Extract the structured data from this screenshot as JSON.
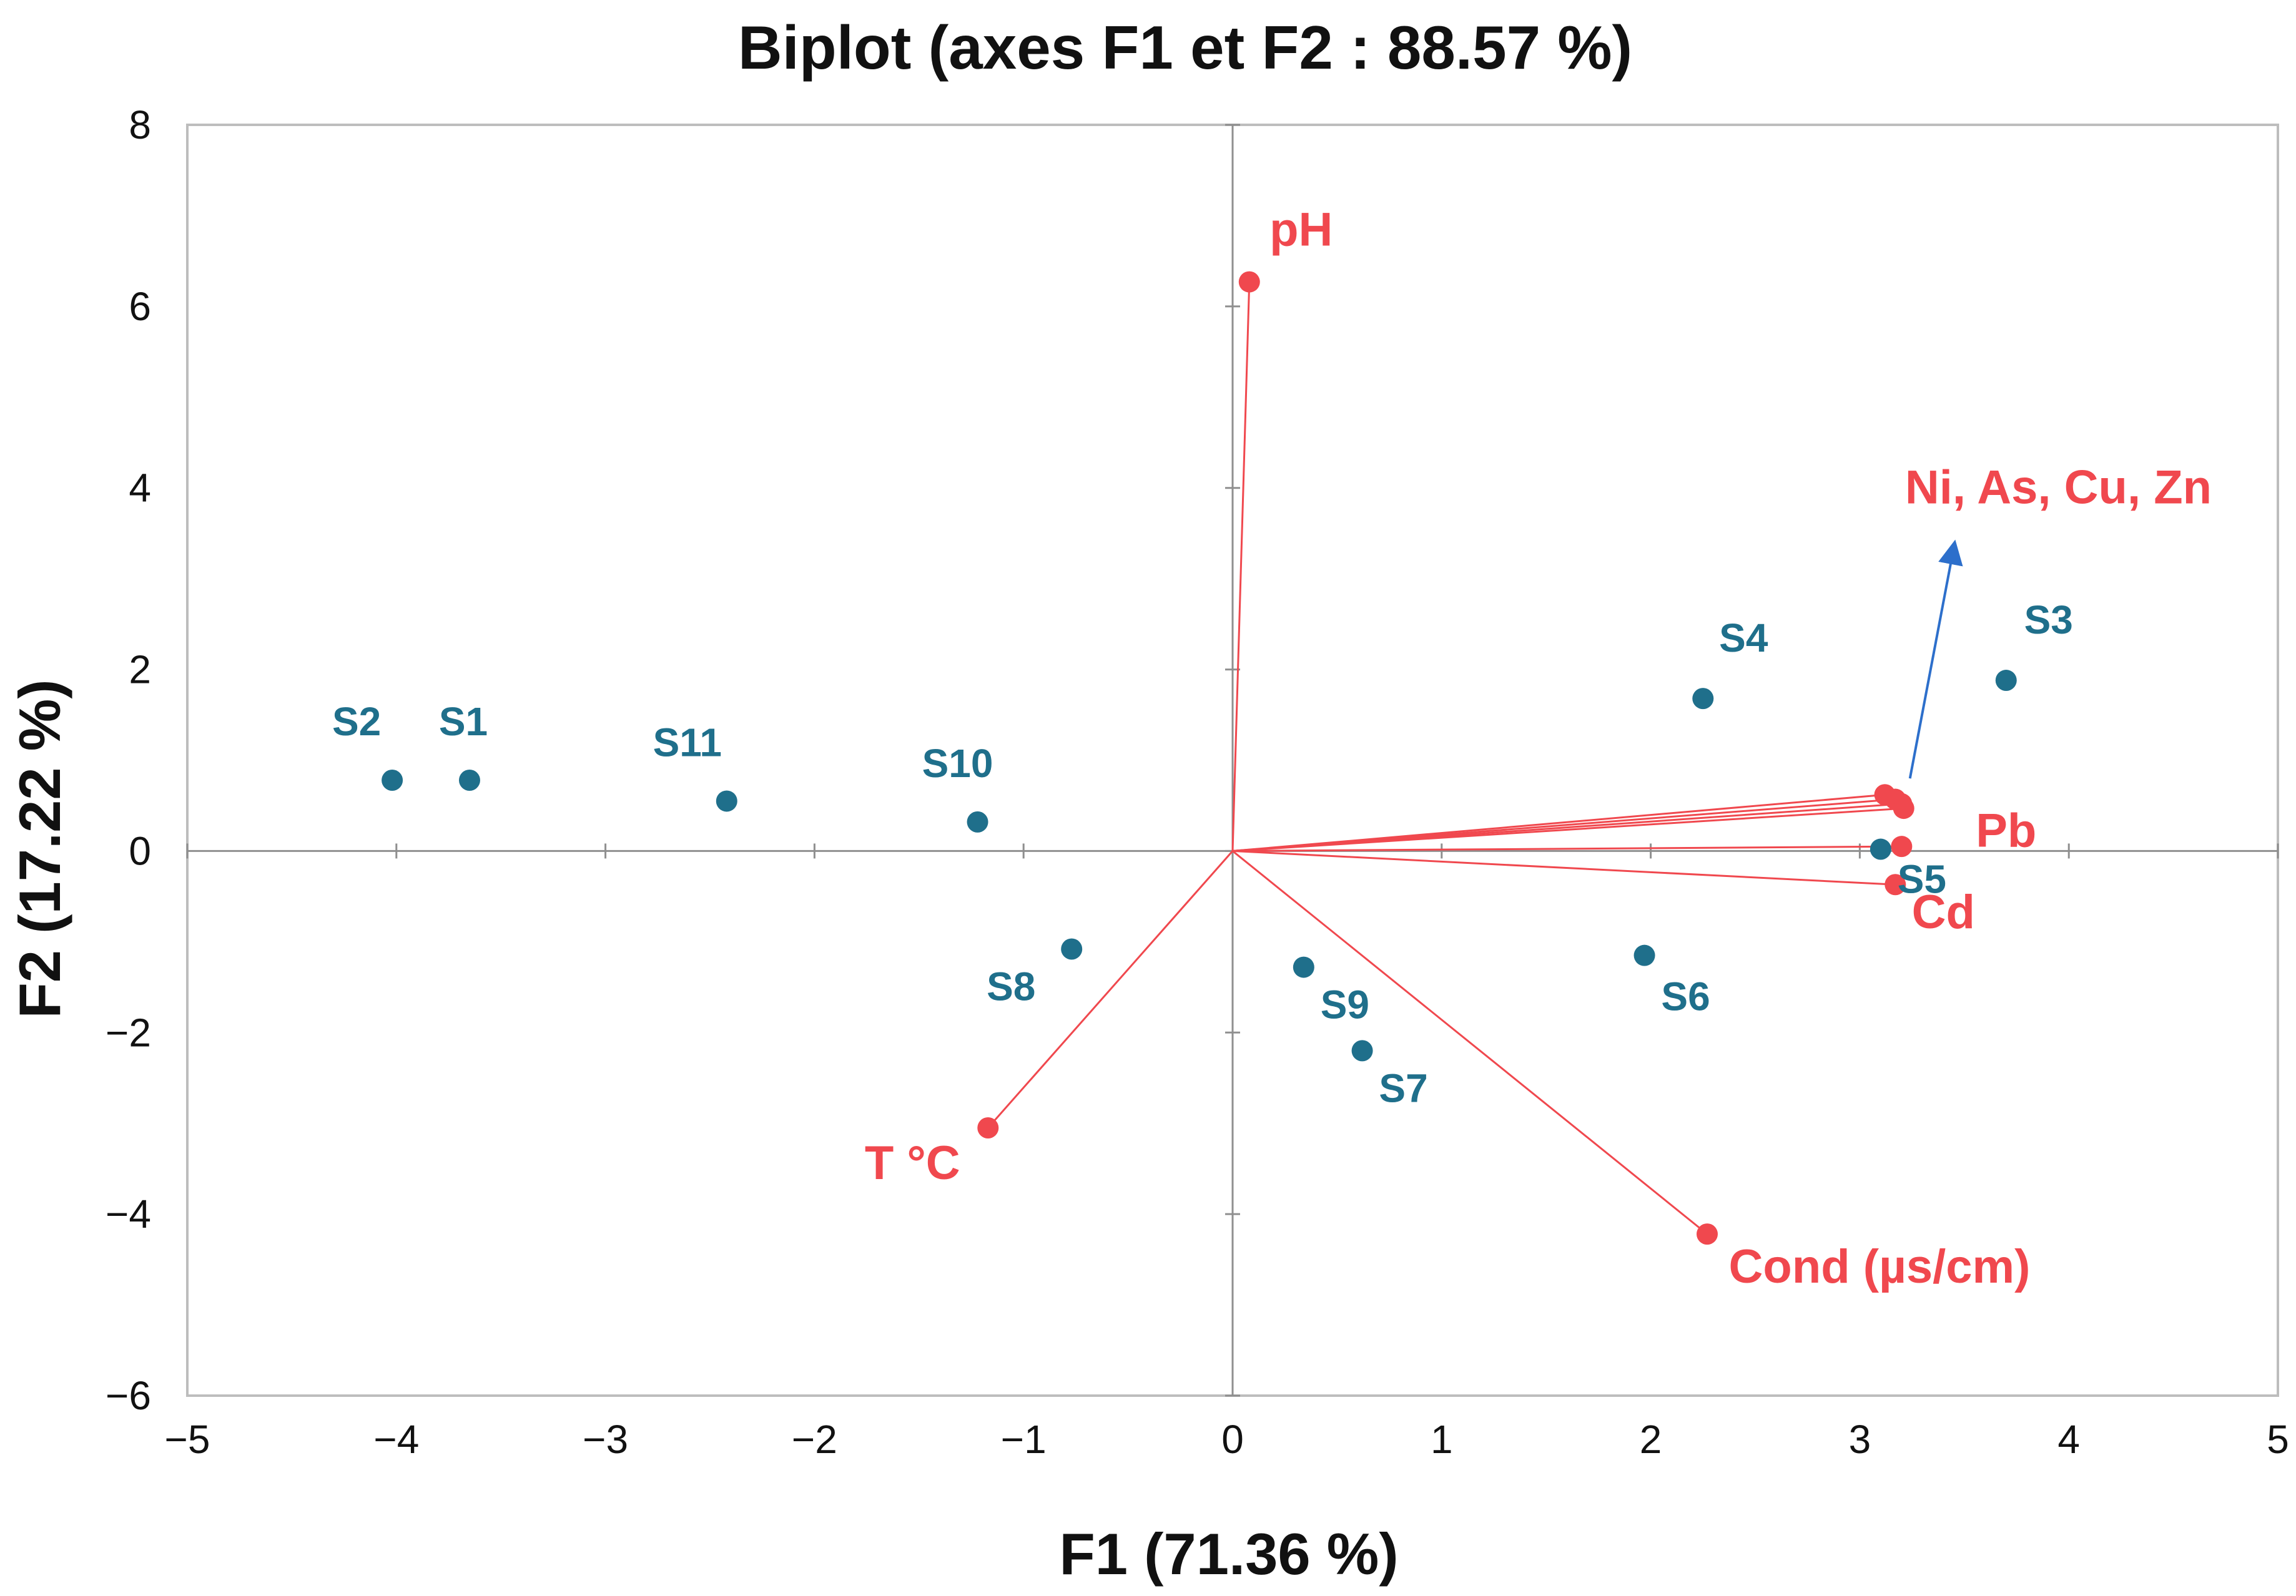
{
  "chart_data": {
    "type": "scatter",
    "subtype": "pca-biplot",
    "title": "Biplot (axes F1 et F2 : 88.57 %)",
    "xlabel": "F1 (71.36 %)",
    "ylabel": "F2 (17.22 %)",
    "xlim": [
      -5,
      5
    ],
    "ylim": [
      -6,
      8
    ],
    "xticks": [
      -5,
      -4,
      -3,
      -2,
      -1,
      0,
      1,
      2,
      3,
      4,
      5
    ],
    "yticks": [
      -6,
      -4,
      -2,
      0,
      2,
      4,
      6,
      8
    ],
    "xtick_labels": [
      "−5",
      "−4",
      "−3",
      "−2",
      "−1",
      "0",
      "1",
      "2",
      "3",
      "4",
      "5"
    ],
    "ytick_labels": [
      "−6",
      "−4",
      "−2",
      "0",
      "2",
      "4",
      "6",
      "8"
    ],
    "grid": false,
    "legend": "none",
    "observations": [
      {
        "label": "S1",
        "x": -3.65,
        "y": 0.78
      },
      {
        "label": "S2",
        "x": -4.02,
        "y": 0.78
      },
      {
        "label": "S3",
        "x": 3.7,
        "y": 1.88
      },
      {
        "label": "S4",
        "x": 2.25,
        "y": 1.68
      },
      {
        "label": "S5",
        "x": 3.1,
        "y": 0.02
      },
      {
        "label": "S6",
        "x": 1.97,
        "y": -1.15
      },
      {
        "label": "S7",
        "x": 0.62,
        "y": -2.2
      },
      {
        "label": "S8",
        "x": -0.77,
        "y": -1.08
      },
      {
        "label": "S9",
        "x": 0.34,
        "y": -1.28
      },
      {
        "label": "S10",
        "x": -1.22,
        "y": 0.32
      },
      {
        "label": "S11",
        "x": -2.42,
        "y": 0.55
      }
    ],
    "variables": [
      {
        "name": "pH",
        "x": 0.08,
        "y": 6.27
      },
      {
        "name": "T °C",
        "x": -1.17,
        "y": -3.05
      },
      {
        "name": "Cond (µs/cm)",
        "x": 2.27,
        "y": -4.22
      },
      {
        "name": "Ni",
        "x": 3.12,
        "y": 0.62
      },
      {
        "name": "As",
        "x": 3.17,
        "y": 0.57
      },
      {
        "name": "Cu",
        "x": 3.2,
        "y": 0.52
      },
      {
        "name": "Zn",
        "x": 3.21,
        "y": 0.47
      },
      {
        "name": "Pb",
        "x": 3.2,
        "y": 0.05
      },
      {
        "name": "Cd",
        "x": 3.17,
        "y": -0.37
      }
    ],
    "variable_group_label": "Ni, As, Cu, Zn",
    "pb_label": "Pb",
    "cd_label": "Cd",
    "annotation_arrow": {
      "from": [
        3.24,
        0.8
      ],
      "to": [
        3.45,
        3.35
      ]
    },
    "colors": {
      "observations": "#1f6f8b",
      "variables": "#f0484e",
      "arrow": "#2d6fcb",
      "axes": "#8f8f8f",
      "frame": "#bdbdbd"
    }
  }
}
